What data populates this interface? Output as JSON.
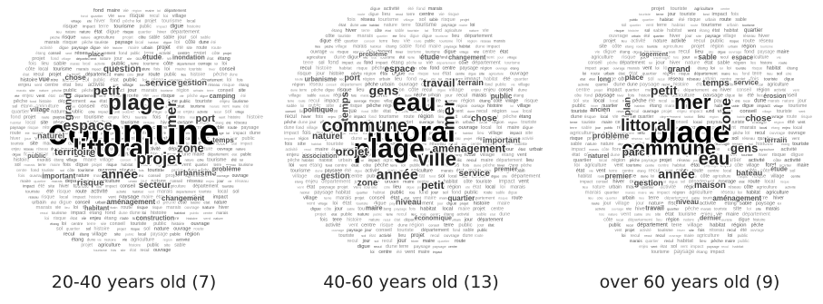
{
  "clouds": [
    {
      "caption": "20-40 years old (7)",
      "words": [
        {
          "t": "commune",
          "s": 40,
          "c": "#000"
        },
        {
          "t": "littoral",
          "s": 28,
          "c": "#111"
        },
        {
          "t": "plage",
          "s": 24,
          "c": "#222"
        },
        {
          "t": "projet",
          "s": 18,
          "c": "#222"
        },
        {
          "t": "espace",
          "s": 16,
          "c": "#333"
        },
        {
          "t": "mer",
          "s": 16,
          "c": "#333"
        },
        {
          "t": "année",
          "s": 14,
          "c": "#333"
        },
        {
          "t": "petit",
          "s": 14,
          "c": "#333"
        },
        {
          "t": "zone",
          "s": 13,
          "c": "#333"
        },
        {
          "t": "territoire",
          "s": 11,
          "c": "#444"
        },
        {
          "t": "service",
          "s": 10,
          "c": "#444"
        },
        {
          "t": "secteur",
          "s": 10,
          "c": "#444"
        },
        {
          "t": "grand",
          "s": 11,
          "c": "#444"
        },
        {
          "t": "port",
          "s": 11,
          "c": "#444"
        },
        {
          "t": "risque",
          "s": 10,
          "c": "#555"
        },
        {
          "t": "question",
          "s": 10,
          "c": "#555"
        },
        {
          "t": "urbanisme",
          "s": 9,
          "c": "#555"
        },
        {
          "t": "naturel",
          "s": 9,
          "c": "#555"
        },
        {
          "t": "gestion",
          "s": 9,
          "c": "#555"
        },
        {
          "t": "aménagement",
          "s": 8,
          "c": "#555"
        },
        {
          "t": "chose",
          "s": 8,
          "c": "#555"
        },
        {
          "t": "temps",
          "s": 8,
          "c": "#555"
        },
        {
          "t": "important",
          "s": 8,
          "c": "#555"
        },
        {
          "t": "étude",
          "s": 8,
          "c": "#555"
        },
        {
          "t": "changement",
          "s": 8,
          "c": "#555"
        },
        {
          "t": "village",
          "s": 7,
          "c": "#666"
        },
        {
          "t": "camping",
          "s": 7,
          "c": "#666"
        },
        {
          "t": "habitant",
          "s": 7,
          "c": "#666"
        },
        {
          "t": "place",
          "s": 7,
          "c": "#666"
        },
        {
          "t": "problème",
          "s": 7,
          "c": "#666"
        },
        {
          "t": "public",
          "s": 7,
          "c": "#666"
        },
        {
          "t": "inondation",
          "s": 7,
          "c": "#666"
        },
        {
          "t": "construction",
          "s": 7,
          "c": "#666"
        },
        {
          "t": "vue",
          "s": 7,
          "c": "#666"
        }
      ]
    },
    {
      "caption": "40-60 years old (13)",
      "words": [
        {
          "t": "littoral",
          "s": 32,
          "c": "#000"
        },
        {
          "t": "plage",
          "s": 30,
          "c": "#111"
        },
        {
          "t": "eau",
          "s": 28,
          "c": "#111"
        },
        {
          "t": "ville",
          "s": 22,
          "c": "#222"
        },
        {
          "t": "commune",
          "s": 20,
          "c": "#222"
        },
        {
          "t": "mer",
          "s": 18,
          "c": "#222"
        },
        {
          "t": "année",
          "s": 16,
          "c": "#333"
        },
        {
          "t": "gens",
          "s": 14,
          "c": "#333"
        },
        {
          "t": "aménagement",
          "s": 12,
          "c": "#333"
        },
        {
          "t": "projet",
          "s": 13,
          "c": "#333"
        },
        {
          "t": "travail",
          "s": 12,
          "c": "#333"
        },
        {
          "t": "petit",
          "s": 12,
          "c": "#333"
        },
        {
          "t": "temps",
          "s": 11,
          "c": "#444"
        },
        {
          "t": "chose",
          "s": 10,
          "c": "#444"
        },
        {
          "t": "zone",
          "s": 10,
          "c": "#444"
        },
        {
          "t": "espace",
          "s": 10,
          "c": "#444"
        },
        {
          "t": "service",
          "s": 10,
          "c": "#444"
        },
        {
          "t": "naturel",
          "s": 10,
          "c": "#444"
        },
        {
          "t": "terrain",
          "s": 9,
          "c": "#444"
        },
        {
          "t": "niveau",
          "s": 9,
          "c": "#555"
        },
        {
          "t": "port",
          "s": 9,
          "c": "#555"
        },
        {
          "t": "important",
          "s": 9,
          "c": "#555"
        },
        {
          "t": "gestion",
          "s": 9,
          "c": "#555"
        },
        {
          "t": "étude",
          "s": 8,
          "c": "#555"
        },
        {
          "t": "quartier",
          "s": 8,
          "c": "#555"
        },
        {
          "t": "politique",
          "s": 8,
          "c": "#555"
        },
        {
          "t": "public",
          "s": 8,
          "c": "#555"
        },
        {
          "t": "maire",
          "s": 7,
          "c": "#666"
        },
        {
          "t": "problème",
          "s": 7,
          "c": "#666"
        },
        {
          "t": "premier",
          "s": 7,
          "c": "#666"
        },
        {
          "t": "association",
          "s": 7,
          "c": "#666"
        },
        {
          "t": "changement",
          "s": 7,
          "c": "#666"
        },
        {
          "t": "économique",
          "s": 7,
          "c": "#666"
        },
        {
          "t": "urbanisme",
          "s": 7,
          "c": "#666"
        }
      ]
    },
    {
      "caption": "over 60 years old (9)",
      "words": [
        {
          "t": "plage",
          "s": 34,
          "c": "#000"
        },
        {
          "t": "commune",
          "s": 22,
          "c": "#111"
        },
        {
          "t": "mer",
          "s": 22,
          "c": "#111"
        },
        {
          "t": "eau",
          "s": 20,
          "c": "#222"
        },
        {
          "t": "littoral",
          "s": 18,
          "c": "#222"
        },
        {
          "t": "zone",
          "s": 16,
          "c": "#222"
        },
        {
          "t": "année",
          "s": 14,
          "c": "#333"
        },
        {
          "t": "petit",
          "s": 14,
          "c": "#333"
        },
        {
          "t": "gens",
          "s": 13,
          "c": "#333"
        },
        {
          "t": "parc",
          "s": 12,
          "c": "#333"
        },
        {
          "t": "temps",
          "s": 10,
          "c": "#444"
        },
        {
          "t": "maison",
          "s": 10,
          "c": "#444"
        },
        {
          "t": "plan",
          "s": 10,
          "c": "#444"
        },
        {
          "t": "chose",
          "s": 10,
          "c": "#444"
        },
        {
          "t": "gestion",
          "s": 9,
          "c": "#444"
        },
        {
          "t": "grand",
          "s": 9,
          "c": "#444"
        },
        {
          "t": "bateau",
          "s": 9,
          "c": "#555"
        },
        {
          "t": "problème",
          "s": 9,
          "c": "#555"
        },
        {
          "t": "service",
          "s": 8,
          "c": "#555"
        },
        {
          "t": "niveau",
          "s": 8,
          "c": "#555"
        },
        {
          "t": "place",
          "s": 8,
          "c": "#555"
        },
        {
          "t": "terrain",
          "s": 8,
          "c": "#555"
        },
        {
          "t": "premier",
          "s": 8,
          "c": "#555"
        },
        {
          "t": "sable",
          "s": 8,
          "c": "#555"
        },
        {
          "t": "aménagement",
          "s": 8,
          "c": "#555"
        },
        {
          "t": "ancien",
          "s": 7,
          "c": "#666"
        },
        {
          "t": "érosion",
          "s": 7,
          "c": "#666"
        },
        {
          "t": "travail",
          "s": 7,
          "c": "#666"
        },
        {
          "t": "logement",
          "s": 7,
          "c": "#666"
        },
        {
          "t": "étude",
          "s": 7,
          "c": "#666"
        },
        {
          "t": "naturel",
          "s": 7,
          "c": "#666"
        },
        {
          "t": "espace",
          "s": 7,
          "c": "#666"
        },
        {
          "t": "dernier",
          "s": 7,
          "c": "#666"
        },
        {
          "t": "long",
          "s": 7,
          "c": "#666"
        }
      ]
    }
  ],
  "filler_words": [
    "nature",
    "risque",
    "urbain",
    "terre",
    "ouvrage",
    "digue",
    "dune",
    "vent",
    "route",
    "tourisme",
    "région",
    "état",
    "loi",
    "département",
    "local",
    "projet",
    "vie",
    "village",
    "maire",
    "quartier",
    "sol",
    "côte",
    "site",
    "centre",
    "réseau",
    "activité",
    "marais",
    "pêche",
    "habitat",
    "recul",
    "public",
    "été",
    "hiver",
    "touriste",
    "conseil",
    "enjeu",
    "lieu",
    "impact",
    "paysage",
    "sable",
    "fond",
    "étang",
    "jour",
    "fois",
    "histoire",
    "agriculture"
  ]
}
